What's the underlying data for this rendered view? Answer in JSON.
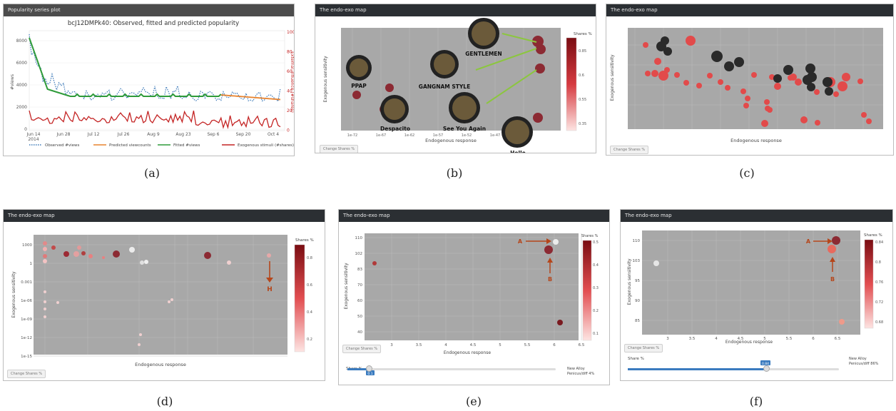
{
  "captions": [
    "(a)",
    "(b)",
    "(c)",
    "(d)",
    "(e)",
    "(f)"
  ],
  "panels": {
    "a": {
      "header": "Popularity series plot",
      "title": "bcJ12DMPk40: Observed, fitted and predicted popularity",
      "ylabel_left": "#views",
      "ylabel_right": "External influence (#shares)",
      "left_ticks": [
        "8000",
        "6000",
        "4000",
        "2000",
        "0"
      ],
      "right_ticks": [
        "100",
        "80",
        "60",
        "40",
        "20",
        "0"
      ],
      "x_ticks": [
        "Jun 14\n2014",
        "Jun 28",
        "Jul 12",
        "Jul 26",
        "Aug 9",
        "Aug 23",
        "Sep 6",
        "Sep 20",
        "Oct 4"
      ],
      "legend": [
        "Observed #views",
        "Predicted viewcounts",
        "Fitted #views",
        "Exogenous stimuli (#shares)"
      ],
      "colors": {
        "observed": "#3a78b8",
        "predicted": "#e8832e",
        "fitted": "#2f9b3a",
        "exogenous": "#c42424"
      }
    },
    "b": {
      "header": "The endo-exo map",
      "ylabel": "Exogenous sensitivity",
      "xlabel": "Endogenous response",
      "legend_title": "Shares %",
      "legend_ticks": [
        "0.85",
        "0.6",
        "0.55",
        "0.35"
      ],
      "button": "Change Shares %",
      "x_ticks": [
        "1e-72",
        "1e-67",
        "1e-62",
        "1e-57",
        "1e-52",
        "1e-47",
        "1e-42"
      ],
      "labels": [
        "GENTLEMEN",
        "PPAP",
        "GANGNAM STYLE",
        "Despacito",
        "See You Again",
        "Hello"
      ]
    },
    "c": {
      "header": "The endo-exo map",
      "ylabel": "Exogenous sensitivity",
      "xlabel": "Endogenous response",
      "button": "Change Shares %"
    },
    "d": {
      "header": "The endo-exo map",
      "ylabel": "Exogenous sensitivity",
      "xlabel": "Endogenous response",
      "legend_title": "Shares %",
      "legend_ticks": [
        "0.8",
        "0.6",
        "0.4",
        "0.2"
      ],
      "button": "Change Shares %",
      "marker": "H",
      "y_ticks": [
        "1000",
        "1",
        "0.001",
        "1e-06",
        "1e-09",
        "1e-12",
        "1e-15"
      ]
    },
    "e": {
      "header": "The endo-exo map",
      "ylabel": "Exogenous sensitivity",
      "xlabel": "Endogenous response",
      "legend_title": "Shares %",
      "legend_ticks": [
        "0.5",
        "0.4",
        "0.3",
        "0.2",
        "0.1"
      ],
      "button": "Change Shares %",
      "slider_label": "Share %",
      "slider_value": "0.1",
      "note_a": "New Alloy",
      "note_b": "Penicus/diff 4%",
      "marker_a": "A",
      "marker_b": "B",
      "x_ticks": [
        "3",
        "3.5",
        "4",
        "4.5",
        "5",
        "5.5",
        "6",
        "6.5"
      ],
      "y_ticks": [
        "110",
        "102",
        "83",
        "70",
        "60",
        "50",
        "40"
      ]
    },
    "f": {
      "header": "The endo-exo map",
      "ylabel": "Exogenous sensitivity",
      "xlabel": "Endogenous response",
      "legend_title": "Shares %",
      "legend_ticks": [
        "0.84",
        "0.8",
        "0.76",
        "0.72",
        "0.68"
      ],
      "button": "Change Shares %",
      "slider_label": "Share %",
      "slider_value": "0.84",
      "note_a": "New Alloy",
      "note_b": "Penicus/diff 86%",
      "marker_a": "A",
      "marker_b": "B",
      "x_ticks": [
        "3",
        "3.5",
        "4",
        "4.5",
        "5",
        "5.5",
        "6",
        "6.5"
      ],
      "y_ticks": [
        "110",
        "103",
        "95",
        "90",
        "85"
      ]
    }
  }
}
